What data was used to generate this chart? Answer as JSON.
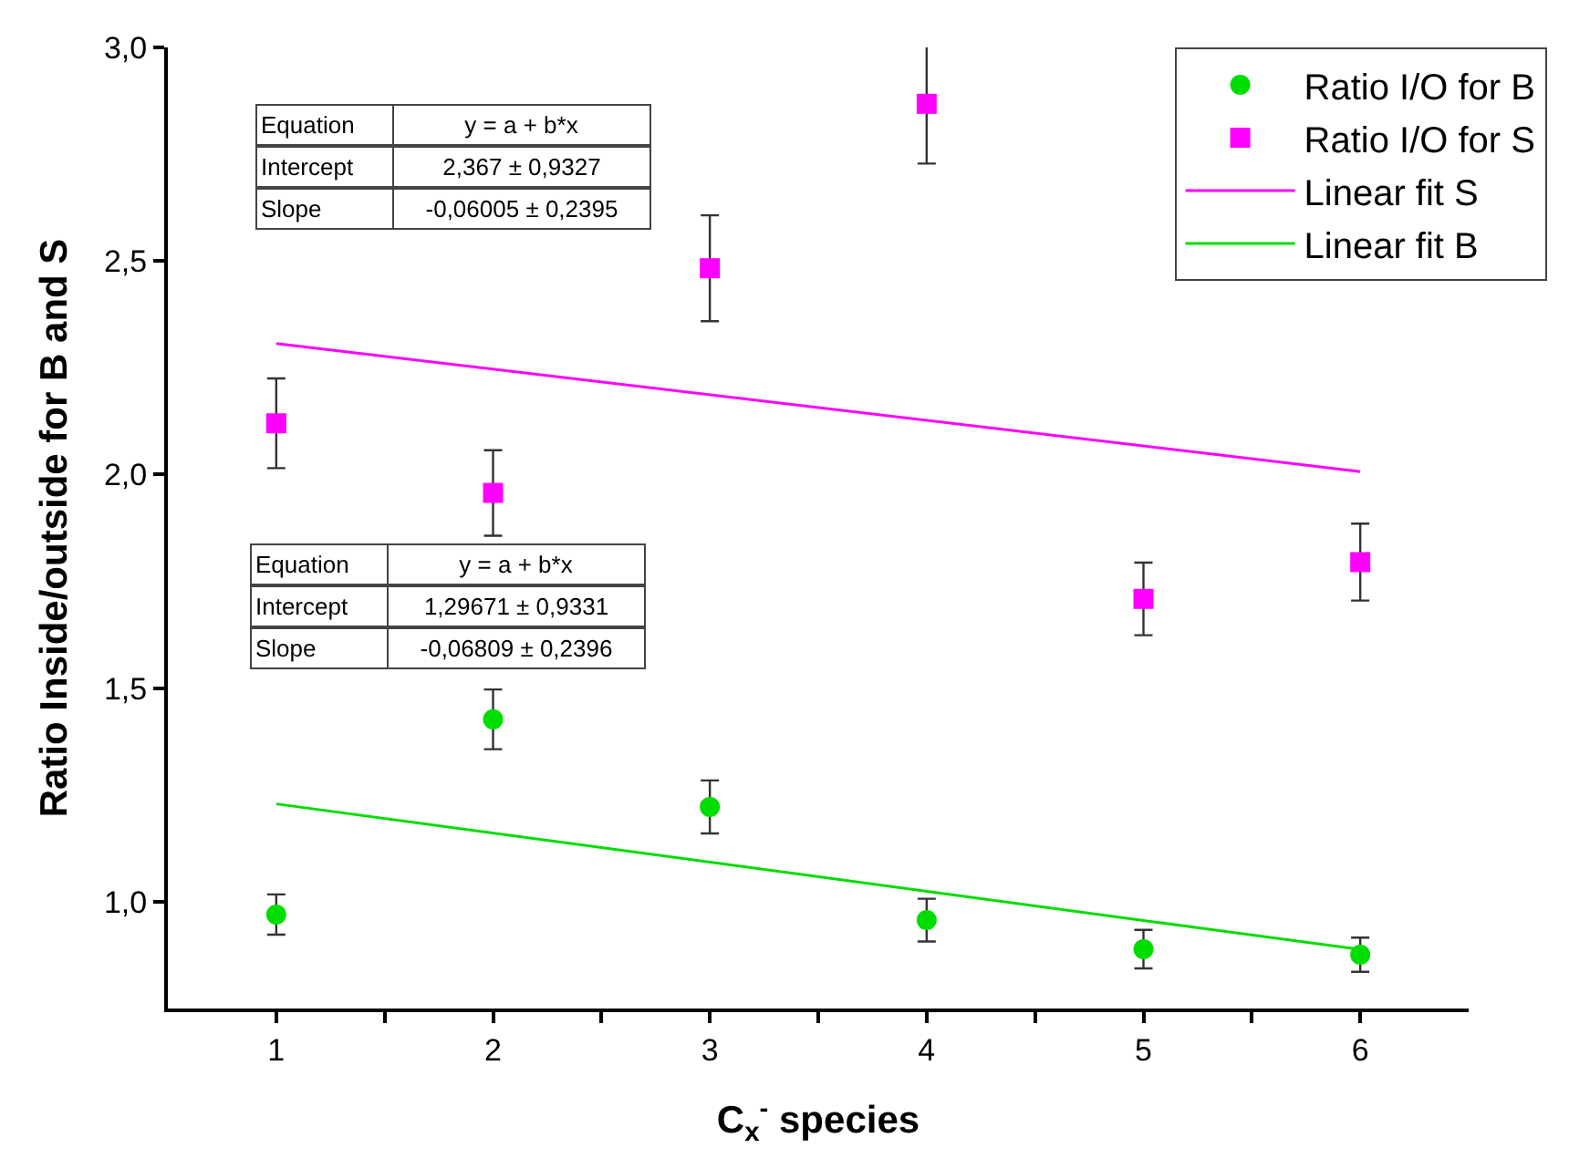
{
  "chart_data": {
    "type": "scatter",
    "xlabel": "C$_{x}$$^{-}$ species",
    "ylabel": "Ratio Inside/outside for B and S",
    "xlim": [
      0.5,
      6.5
    ],
    "ylim": [
      0.75,
      3.0
    ],
    "xticks": [
      1,
      {
        "value": 1.5,
        "label": null
      },
      2,
      {
        "value": 2.5,
        "label": null
      },
      3,
      {
        "value": 3.5,
        "label": null
      },
      4,
      {
        "value": 4.5,
        "label": null
      },
      5,
      {
        "value": 5.5,
        "label": null
      },
      6
    ],
    "yticks": [
      {
        "value": 1.0,
        "label": "1,0"
      },
      {
        "value": 1.5,
        "label": "1,5"
      },
      {
        "value": 2.0,
        "label": "2,0"
      },
      {
        "value": 2.5,
        "label": "2,5"
      },
      {
        "value": 3.0,
        "label": "3,0"
      }
    ],
    "legend": "top right",
    "series": [
      {
        "name": "Ratio I/O for B",
        "marker": "circle",
        "color": "#00dd00",
        "x": [
          1,
          2,
          3,
          4,
          5,
          6
        ],
        "values": [
          0.97,
          1.427,
          1.222,
          0.957,
          0.889,
          0.876
        ],
        "errors": [
          0.047,
          0.07,
          0.062,
          0.05,
          0.045,
          0.04
        ]
      },
      {
        "name": "Ratio I/O for S",
        "marker": "square",
        "color": "#ff00ff",
        "x": [
          1,
          2,
          3,
          4,
          5,
          6
        ],
        "values": [
          2.12,
          1.957,
          2.483,
          2.868,
          1.709,
          1.795
        ],
        "errors": [
          0.105,
          0.1,
          0.124,
          0.14,
          0.085,
          0.09
        ]
      },
      {
        "name": "Linear fit S",
        "type": "line",
        "marker": "none",
        "line_style": "solid",
        "color": "#ff00ff",
        "x": [
          1,
          6
        ],
        "values": [
          2.307,
          2.007
        ]
      },
      {
        "name": "Linear fit B",
        "type": "line",
        "marker": "none",
        "line_style": "solid",
        "color": "#00dd00",
        "x": [
          1,
          6
        ],
        "values": [
          1.229,
          0.888
        ]
      }
    ],
    "annotations": [
      "Equation",
      "y = a + b*x",
      "Intercept",
      "2,367 ± 0,9327",
      "Slope",
      "-0,06005 ± 0,2395",
      "Equation",
      "y = a + b*x",
      "Intercept",
      "1,29671 ± 0,9331",
      "Slope",
      "-0,06809 ± 0,2396"
    ]
  }
}
